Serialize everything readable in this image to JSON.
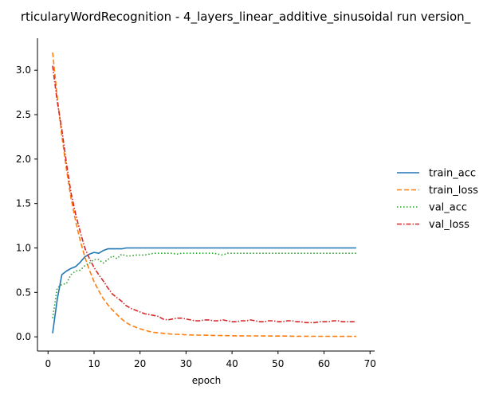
{
  "chart_data": {
    "type": "line",
    "title": "rticularyWordRecognition - 4_layers_linear_additive_sinusoidal run version_",
    "xlabel": "epoch",
    "ylabel": "",
    "xlim": [
      -2.3,
      71
    ],
    "ylim": [
      -0.16,
      3.36
    ],
    "xticks": [
      0,
      10,
      20,
      30,
      40,
      50,
      60,
      70
    ],
    "yticks": [
      0.0,
      0.5,
      1.0,
      1.5,
      2.0,
      2.5,
      3.0
    ],
    "xtick_labels": [
      "0",
      "10",
      "20",
      "30",
      "40",
      "50",
      "60",
      "70"
    ],
    "ytick_labels": [
      "0.0",
      "0.5",
      "1.0",
      "1.5",
      "2.0",
      "2.5",
      "3.0"
    ],
    "grid": false,
    "legend_position": "center-right",
    "x": [
      1,
      2,
      3,
      4,
      5,
      6,
      7,
      8,
      9,
      10,
      11,
      12,
      13,
      14,
      15,
      16,
      17,
      18,
      19,
      20,
      21,
      22,
      23,
      24,
      25,
      26,
      27,
      28,
      29,
      30,
      31,
      32,
      33,
      34,
      35,
      36,
      37,
      38,
      39,
      40,
      41,
      42,
      43,
      44,
      45,
      46,
      47,
      48,
      49,
      50,
      51,
      52,
      53,
      54,
      55,
      56,
      57,
      58,
      59,
      60,
      61,
      62,
      63,
      64,
      65,
      66,
      67
    ],
    "series": [
      {
        "name": "train_acc",
        "color": "#1f77b4",
        "dash": "solid",
        "values": [
          0.04,
          0.42,
          0.7,
          0.74,
          0.77,
          0.79,
          0.84,
          0.9,
          0.93,
          0.95,
          0.94,
          0.97,
          0.99,
          0.99,
          0.99,
          0.99,
          1.0,
          1.0,
          1.0,
          1.0,
          1.0,
          1.0,
          1.0,
          1.0,
          1.0,
          1.0,
          1.0,
          1.0,
          1.0,
          1.0,
          1.0,
          1.0,
          1.0,
          1.0,
          1.0,
          1.0,
          1.0,
          1.0,
          1.0,
          1.0,
          1.0,
          1.0,
          1.0,
          1.0,
          1.0,
          1.0,
          1.0,
          1.0,
          1.0,
          1.0,
          1.0,
          1.0,
          1.0,
          1.0,
          1.0,
          1.0,
          1.0,
          1.0,
          1.0,
          1.0,
          1.0,
          1.0,
          1.0,
          1.0,
          1.0,
          1.0,
          1.0
        ]
      },
      {
        "name": "train_loss",
        "color": "#ff7f0e",
        "dash": "dashed",
        "values": [
          3.2,
          2.7,
          2.26,
          1.88,
          1.56,
          1.3,
          1.08,
          0.9,
          0.75,
          0.62,
          0.52,
          0.43,
          0.36,
          0.3,
          0.25,
          0.2,
          0.16,
          0.13,
          0.11,
          0.09,
          0.075,
          0.06,
          0.05,
          0.045,
          0.04,
          0.035,
          0.03,
          0.028,
          0.025,
          0.023,
          0.021,
          0.02,
          0.019,
          0.018,
          0.017,
          0.016,
          0.015,
          0.014,
          0.013,
          0.012,
          0.011,
          0.011,
          0.01,
          0.01,
          0.01,
          0.009,
          0.009,
          0.009,
          0.008,
          0.008,
          0.008,
          0.008,
          0.007,
          0.007,
          0.007,
          0.007,
          0.006,
          0.006,
          0.006,
          0.006,
          0.006,
          0.005,
          0.005,
          0.005,
          0.005,
          0.005,
          0.005
        ]
      },
      {
        "name": "val_acc",
        "color": "#2ca02c",
        "dash": "dotted",
        "values": [
          0.21,
          0.55,
          0.59,
          0.6,
          0.7,
          0.74,
          0.75,
          0.8,
          0.83,
          0.87,
          0.87,
          0.83,
          0.87,
          0.91,
          0.88,
          0.93,
          0.91,
          0.91,
          0.92,
          0.92,
          0.92,
          0.93,
          0.94,
          0.94,
          0.94,
          0.94,
          0.94,
          0.93,
          0.94,
          0.94,
          0.94,
          0.94,
          0.94,
          0.94,
          0.94,
          0.94,
          0.93,
          0.92,
          0.94,
          0.94,
          0.94,
          0.94,
          0.94,
          0.94,
          0.94,
          0.94,
          0.94,
          0.94,
          0.94,
          0.94,
          0.94,
          0.94,
          0.94,
          0.94,
          0.94,
          0.94,
          0.94,
          0.94,
          0.94,
          0.94,
          0.94,
          0.94,
          0.94,
          0.94,
          0.94,
          0.94,
          0.94
        ]
      },
      {
        "name": "val_loss",
        "color": "#d62728",
        "dash": "dashdot",
        "values": [
          3.05,
          2.65,
          2.33,
          1.95,
          1.62,
          1.38,
          1.18,
          1.0,
          0.88,
          0.78,
          0.7,
          0.63,
          0.55,
          0.48,
          0.44,
          0.4,
          0.35,
          0.32,
          0.3,
          0.28,
          0.26,
          0.25,
          0.24,
          0.23,
          0.2,
          0.19,
          0.2,
          0.21,
          0.21,
          0.2,
          0.19,
          0.18,
          0.18,
          0.19,
          0.19,
          0.18,
          0.18,
          0.19,
          0.18,
          0.17,
          0.17,
          0.18,
          0.18,
          0.19,
          0.18,
          0.17,
          0.17,
          0.18,
          0.18,
          0.17,
          0.17,
          0.18,
          0.18,
          0.17,
          0.17,
          0.16,
          0.16,
          0.16,
          0.17,
          0.17,
          0.17,
          0.18,
          0.18,
          0.17,
          0.17,
          0.17,
          0.17
        ]
      }
    ]
  }
}
